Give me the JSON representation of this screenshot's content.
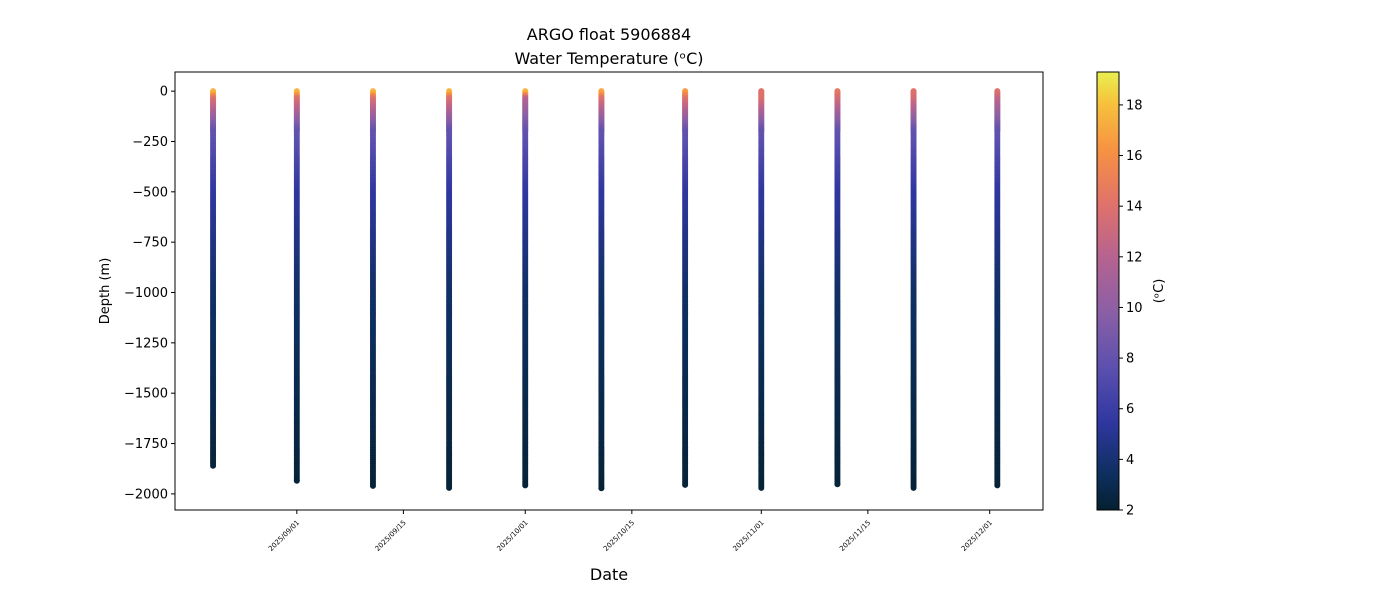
{
  "chart_data": {
    "type": "scatter",
    "title": "ARGO float 5906884",
    "subtitle": "Water Temperature (ᵒC)",
    "xlabel": "Date",
    "ylabel": "Depth (m)",
    "colorbar_label": "(ᵒC)",
    "colormap": "thermal",
    "colorbar_range": [
      2,
      19.3
    ],
    "colorbar_ticks": [
      "2",
      "4",
      "6",
      "8",
      "10",
      "12",
      "14",
      "16",
      "18"
    ],
    "xlim": [
      "2025-08-16",
      "2025-12-08"
    ],
    "ylim": [
      -2080,
      95
    ],
    "x_ticks": [
      "2025/09/01",
      "2025/09/15",
      "2025/10/01",
      "2025/10/15",
      "2025/11/01",
      "2025/11/15",
      "2025/12/01"
    ],
    "y_ticks": [
      "0",
      "−250",
      "−500",
      "−750",
      "−1000",
      "−1250",
      "−1500",
      "−1750",
      "−2000"
    ],
    "grid": false,
    "profiles": [
      {
        "date": "2025-08-21",
        "max_depth": -1860,
        "surface_temp": 17.5,
        "near_surface_temp": 14.0
      },
      {
        "date": "2025-09-01",
        "max_depth": -1935,
        "surface_temp": 17.5,
        "near_surface_temp": 14.0
      },
      {
        "date": "2025-09-11",
        "max_depth": -1960,
        "surface_temp": 17.5,
        "near_surface_temp": 14.0
      },
      {
        "date": "2025-09-21",
        "max_depth": -1970,
        "surface_temp": 17.5,
        "near_surface_temp": 14.0
      },
      {
        "date": "2025-10-01",
        "max_depth": -1958,
        "surface_temp": 17.5,
        "near_surface_temp": 12.0
      },
      {
        "date": "2025-10-11",
        "max_depth": -1972,
        "surface_temp": 17.0,
        "near_surface_temp": 14.0
      },
      {
        "date": "2025-10-22",
        "max_depth": -1955,
        "surface_temp": 16.5,
        "near_surface_temp": 14.0
      },
      {
        "date": "2025-11-01",
        "max_depth": -1970,
        "surface_temp": 14.0,
        "near_surface_temp": 14.0
      },
      {
        "date": "2025-11-11",
        "max_depth": -1952,
        "surface_temp": 14.5,
        "near_surface_temp": 13.5
      },
      {
        "date": "2025-11-21",
        "max_depth": -1970,
        "surface_temp": 14.0,
        "near_surface_temp": 13.5
      },
      {
        "date": "2025-12-02",
        "max_depth": -1958,
        "surface_temp": 14.0,
        "near_surface_temp": 12.5
      }
    ]
  }
}
